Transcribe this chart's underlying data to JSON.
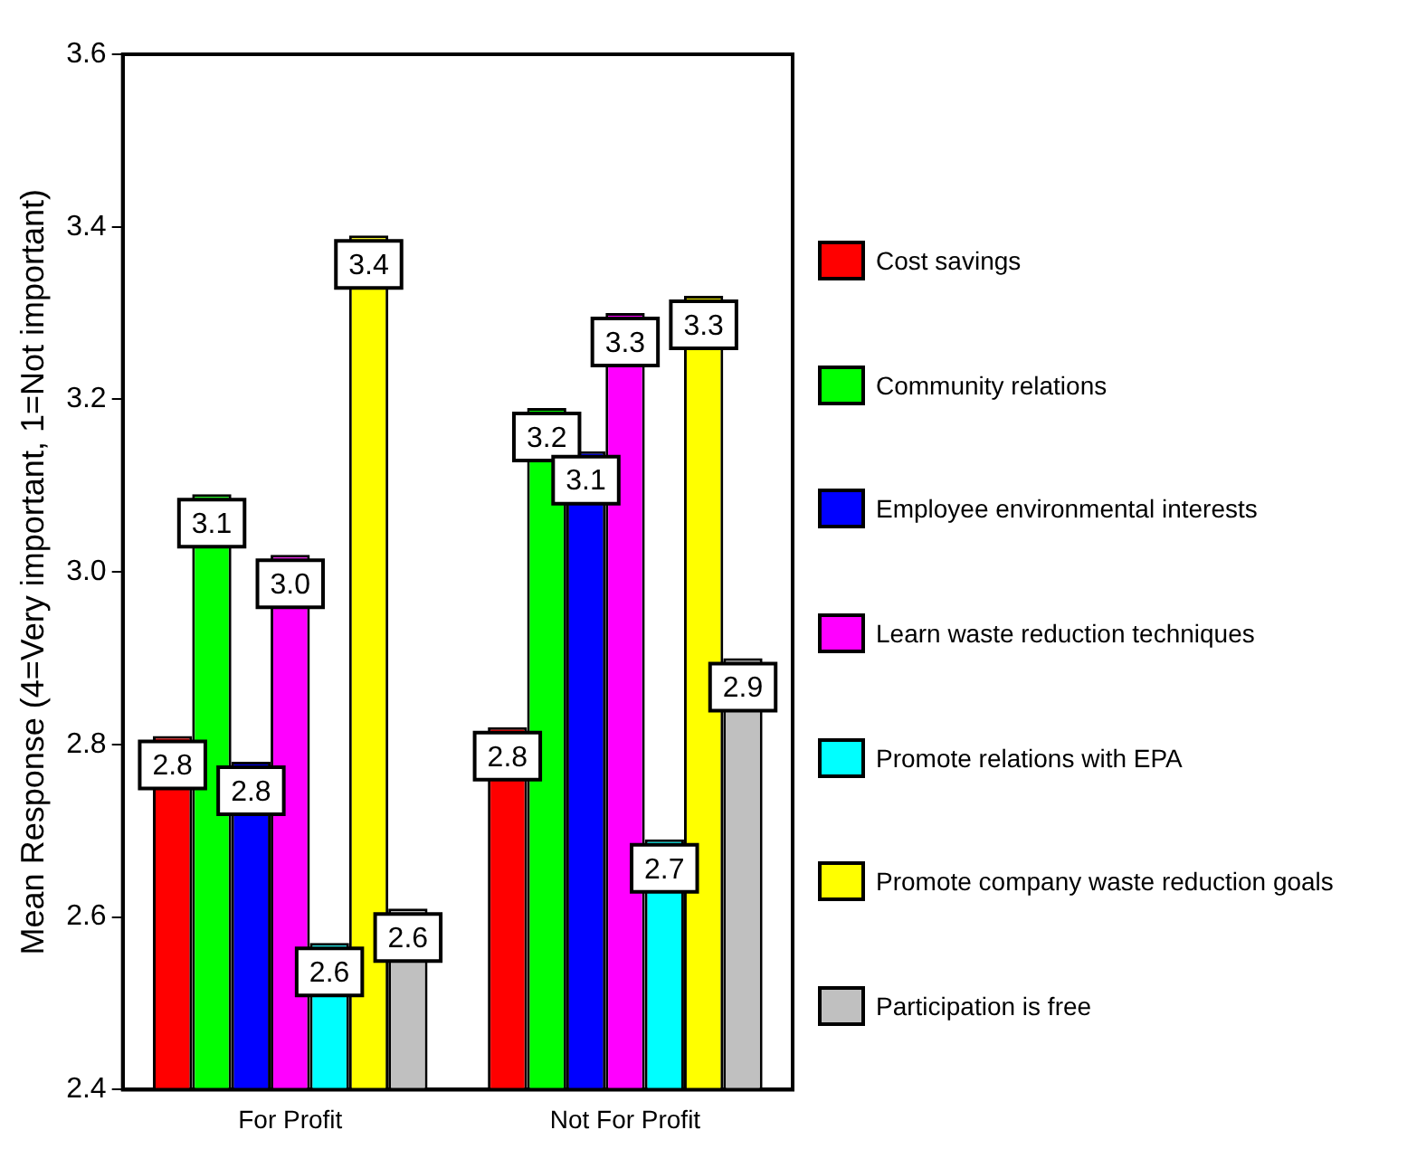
{
  "chart_data": {
    "type": "bar",
    "ylabel": "Mean Response (4=Very important, 1=Not important)",
    "categories": [
      "For Profit",
      "Not For Profit"
    ],
    "series": [
      {
        "name": "Cost savings",
        "color": "#ff0000",
        "values": [
          2.81,
          2.82
        ],
        "value_labels": [
          "2.8",
          "2.8"
        ]
      },
      {
        "name": "Community relations",
        "color": "#00ff00",
        "values": [
          3.09,
          3.19
        ],
        "value_labels": [
          "3.1",
          "3.2"
        ]
      },
      {
        "name": "Employee environmental interests",
        "color": "#0000ff",
        "values": [
          2.78,
          3.14
        ],
        "value_labels": [
          "2.8",
          "3.1"
        ]
      },
      {
        "name": "Learn waste reduction techniques",
        "color": "#ff00ff",
        "values": [
          3.02,
          3.3
        ],
        "value_labels": [
          "3.0",
          "3.3"
        ]
      },
      {
        "name": "Promote relations with EPA",
        "color": "#00ffff",
        "values": [
          2.57,
          2.69
        ],
        "value_labels": [
          "2.6",
          "2.7"
        ]
      },
      {
        "name": "Promote company waste reduction goals",
        "color": "#ffff00",
        "values": [
          3.39,
          3.32
        ],
        "value_labels": [
          "3.4",
          "3.3"
        ]
      },
      {
        "name": "Participation is free",
        "color": "#c0c0c0",
        "values": [
          2.61,
          2.9
        ],
        "value_labels": [
          "2.6",
          "2.9"
        ]
      }
    ],
    "ylim": [
      2.4,
      3.6
    ],
    "yticks": [
      2.4,
      2.6,
      2.8,
      {
        "value": 3,
        "label": "3.0"
      },
      3.2,
      3.4,
      3.6
    ],
    "grid": false,
    "legend": "right"
  }
}
